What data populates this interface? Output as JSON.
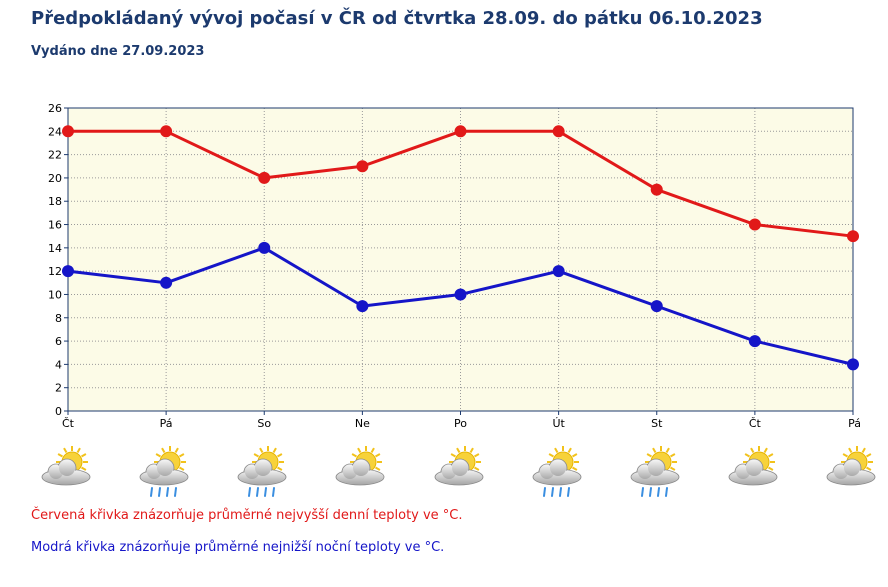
{
  "header": {
    "title": "Předpokládaný vývoj počasí v ČR od čtvrtka 28.09. do pátku 06.10.2023",
    "subtitle": "Vydáno dne 27.09.2023"
  },
  "chart_data": {
    "type": "line",
    "categories": [
      "Čt",
      "Pá",
      "So",
      "Ne",
      "Po",
      "Út",
      "St",
      "Čt",
      "Pá"
    ],
    "series": [
      {
        "key": "max",
        "color": "#e11919",
        "values": [
          24,
          24,
          20,
          21,
          24,
          24,
          19,
          16,
          15
        ]
      },
      {
        "key": "min",
        "color": "#1515c8",
        "values": [
          12,
          11,
          14,
          9,
          10,
          12,
          9,
          6,
          4
        ]
      }
    ],
    "ylim": [
      0,
      26
    ],
    "yticks": [
      0,
      2,
      4,
      6,
      8,
      10,
      12,
      14,
      16,
      18,
      20,
      22,
      24,
      26
    ],
    "grid": true,
    "plot_background": "#fcfbe7",
    "axis_color": "#1c3a6e"
  },
  "weather_icons": [
    {
      "day": "Čt",
      "icon": "sun-behind-cloud-icon",
      "rain": false
    },
    {
      "day": "Pá",
      "icon": "sun-behind-cloud-rain-icon",
      "rain": true
    },
    {
      "day": "So",
      "icon": "sun-behind-cloud-rain-icon",
      "rain": true
    },
    {
      "day": "Ne",
      "icon": "sun-behind-cloud-icon",
      "rain": false
    },
    {
      "day": "Po",
      "icon": "sun-behind-cloud-icon",
      "rain": false
    },
    {
      "day": "Út",
      "icon": "sun-behind-cloud-rain-icon",
      "rain": true
    },
    {
      "day": "St",
      "icon": "sun-behind-cloud-rain-icon",
      "rain": true
    },
    {
      "day": "Čt",
      "icon": "sun-behind-cloud-icon",
      "rain": false
    },
    {
      "day": "Pá",
      "icon": "sun-behind-cloud-icon",
      "rain": false
    }
  ],
  "legend": {
    "red_note": "Červená křivka znázorňuje průměrné nejvyšší denní teploty ve °C.",
    "blue_note": "Modrá křivka znázorňuje průměrné nejnižší noční teploty ve °C."
  }
}
